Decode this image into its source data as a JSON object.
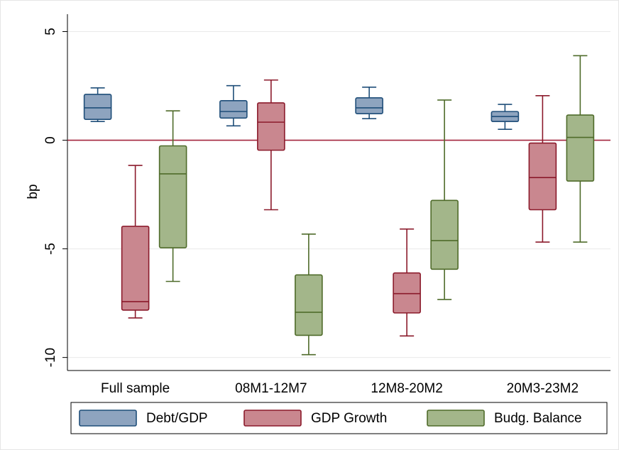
{
  "chart_data": {
    "type": "box",
    "y_label": "bp",
    "categories": [
      "Full sample",
      "08M1-12M7",
      "12M8-20M2",
      "20M3-23M2"
    ],
    "ylim": [
      -10.6,
      5.8
    ],
    "yticks": [
      5,
      0,
      -5,
      -10
    ],
    "grid": true,
    "reference_line": {
      "value": 0,
      "color": "#a3253c"
    },
    "legend_position": "bottom",
    "series": [
      {
        "name": "Debt/GDP",
        "color": "#8ea4bf",
        "edge_color": "#1f4e79",
        "min": [
          0.86,
          0.66,
          0.99,
          0.5
        ],
        "q1": [
          0.96,
          1.02,
          1.22,
          0.86
        ],
        "median": [
          1.49,
          1.32,
          1.49,
          1.09
        ],
        "q3": [
          2.11,
          1.82,
          1.95,
          1.32
        ],
        "max": [
          2.41,
          2.51,
          2.44,
          1.65
        ]
      },
      {
        "name": "GDP Growth",
        "color": "#c9878f",
        "edge_color": "#8b1a2b",
        "min": [
          -8.18,
          -3.2,
          -9.01,
          -4.69
        ],
        "q1": [
          -7.82,
          -0.46,
          -7.95,
          -3.2
        ],
        "median": [
          -7.43,
          0.83,
          -7.06,
          -1.72
        ],
        "q3": [
          -3.96,
          1.72,
          -6.11,
          -0.13
        ],
        "max": [
          -1.16,
          2.77,
          -4.09,
          2.05
        ]
      },
      {
        "name": "Budg. Balance",
        "color": "#a3b68a",
        "edge_color": "#4f6b2a",
        "min": [
          -6.5,
          -9.87,
          -7.33,
          -4.69
        ],
        "q1": [
          -4.95,
          -8.98,
          -5.94,
          -1.88
        ],
        "median": [
          -1.55,
          -7.92,
          -4.62,
          0.13
        ],
        "q3": [
          -0.26,
          -6.2,
          -2.77,
          1.16
        ],
        "max": [
          1.35,
          -4.32,
          1.85,
          3.89
        ]
      }
    ]
  }
}
